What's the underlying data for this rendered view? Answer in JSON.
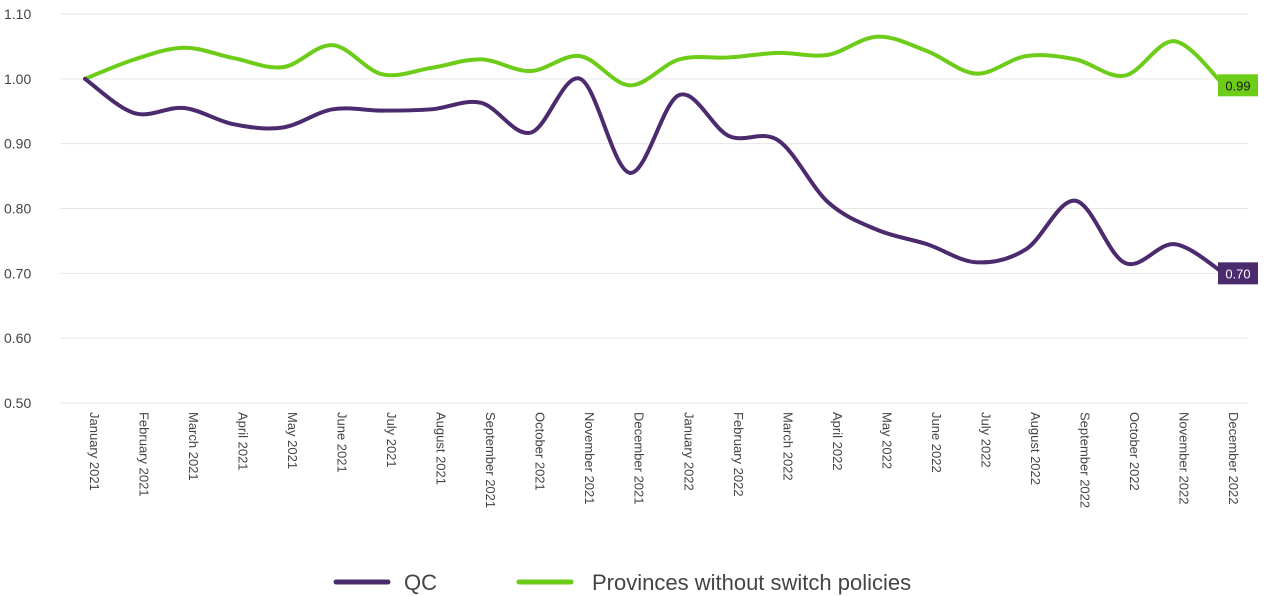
{
  "chart_data": {
    "type": "line",
    "title": "",
    "xlabel": "",
    "ylabel": "",
    "ylim": [
      0.5,
      1.1
    ],
    "y_ticks": [
      "0.50",
      "0.60",
      "0.70",
      "0.80",
      "0.90",
      "1.00",
      "1.10"
    ],
    "grid": true,
    "legend_position": "bottom",
    "categories": [
      "January 2021",
      "February 2021",
      "March 2021",
      "April 2021",
      "May 2021",
      "June 2021",
      "July 2021",
      "August 2021",
      "September 2021",
      "October 2021",
      "November 2021",
      "December 2021",
      "January 2022",
      "February 2022",
      "March 2022",
      "April 2022",
      "May 2022",
      "June 2022",
      "July 2022",
      "August 2022",
      "September 2022",
      "October 2022",
      "November 2022",
      "December 2022"
    ],
    "series": [
      {
        "name": "QC",
        "color": "#4b2a6e",
        "end_label": "0.70",
        "values": [
          1.0,
          0.947,
          0.955,
          0.93,
          0.925,
          0.953,
          0.951,
          0.953,
          0.963,
          0.917,
          1.0,
          0.855,
          0.975,
          0.912,
          0.905,
          0.81,
          0.767,
          0.745,
          0.717,
          0.737,
          0.812,
          0.716,
          0.745,
          0.7
        ]
      },
      {
        "name": "Provinces without switch policies",
        "color": "#6ccc18",
        "end_label": "0.99",
        "values": [
          1.0,
          1.03,
          1.048,
          1.032,
          1.018,
          1.052,
          1.007,
          1.017,
          1.03,
          1.012,
          1.035,
          0.99,
          1.03,
          1.033,
          1.04,
          1.037,
          1.065,
          1.043,
          1.008,
          1.035,
          1.03,
          1.005,
          1.058,
          0.99
        ]
      }
    ]
  }
}
